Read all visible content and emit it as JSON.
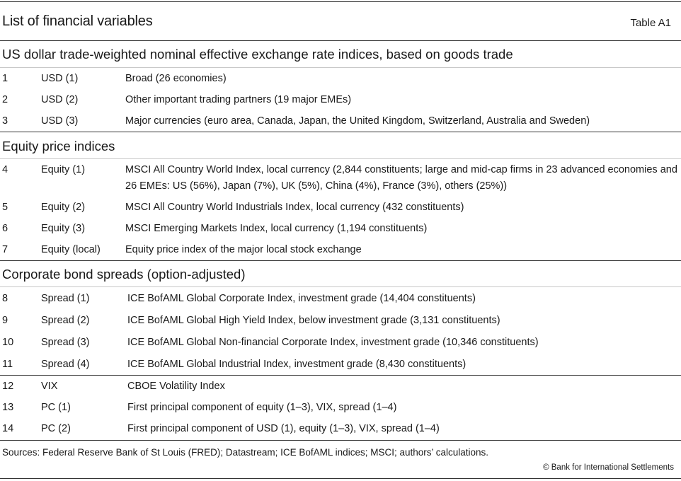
{
  "header": {
    "title": "List of financial variables",
    "table_id": "Table A1"
  },
  "sections": [
    {
      "heading": "US dollar trade-weighted nominal effective exchange rate indices, based on goods trade",
      "rows": [
        {
          "num": "1",
          "var": "USD (1)",
          "desc": "Broad (26 economies)"
        },
        {
          "num": "2",
          "var": "USD (2)",
          "desc": "Other important trading partners (19 major EMEs)"
        },
        {
          "num": "3",
          "var": "USD (3)",
          "desc": "Major currencies (euro area, Canada, Japan, the United Kingdom, Switzerland, Australia and Sweden)"
        }
      ]
    },
    {
      "heading": "Equity price indices",
      "rows": [
        {
          "num": "4",
          "var": "Equity (1)",
          "desc": "MSCI All Country World Index, local currency (2,844 constituents; large and mid-cap firms in 23 advanced economies and 26 EMEs: US (56%), Japan (7%), UK (5%), China (4%), France (3%), others (25%))"
        },
        {
          "num": "5",
          "var": "Equity (2)",
          "desc": "MSCI All Country World Industrials Index, local currency (432 constituents)"
        },
        {
          "num": "6",
          "var": "Equity (3)",
          "desc": "MSCI Emerging Markets Index, local currency (1,194 constituents)"
        },
        {
          "num": "7",
          "var": "Equity (local)",
          "desc": "Equity price index of the major local stock exchange"
        }
      ]
    },
    {
      "heading": "Corporate bond spreads (option-adjusted)",
      "rows": [
        {
          "num": "8",
          "var": "Spread (1)",
          "desc": "ICE BofAML Global Corporate Index, investment grade (14,404 constituents)"
        },
        {
          "num": "9",
          "var": "Spread (2)",
          "desc": "ICE BofAML Global High Yield Index, below investment grade (3,131 constituents)"
        },
        {
          "num": "10",
          "var": "Spread (3)",
          "desc": "ICE BofAML Global Non-financial Corporate Index, investment grade (10,346 constituents)"
        },
        {
          "num": "11",
          "var": "Spread (4)",
          "desc": "ICE BofAML Global Industrial Index, investment grade (8,430 constituents)"
        }
      ]
    },
    {
      "heading": "",
      "rows": [
        {
          "num": "12",
          "var": "VIX",
          "desc": "CBOE Volatility Index"
        },
        {
          "num": "13",
          "var": "PC (1)",
          "desc": "First principal component of equity (1–3), VIX, spread (1–4)"
        },
        {
          "num": "14",
          "var": "PC (2)",
          "desc": "First principal component of USD (1), equity (1–3), VIX, spread (1–4)"
        }
      ]
    }
  ],
  "footer": {
    "sources": "Sources: Federal Reserve Bank of St Louis (FRED); Datastream; ICE BofAML indices; MSCI; authors’ calculations.",
    "copyright": "© Bank for International Settlements"
  }
}
